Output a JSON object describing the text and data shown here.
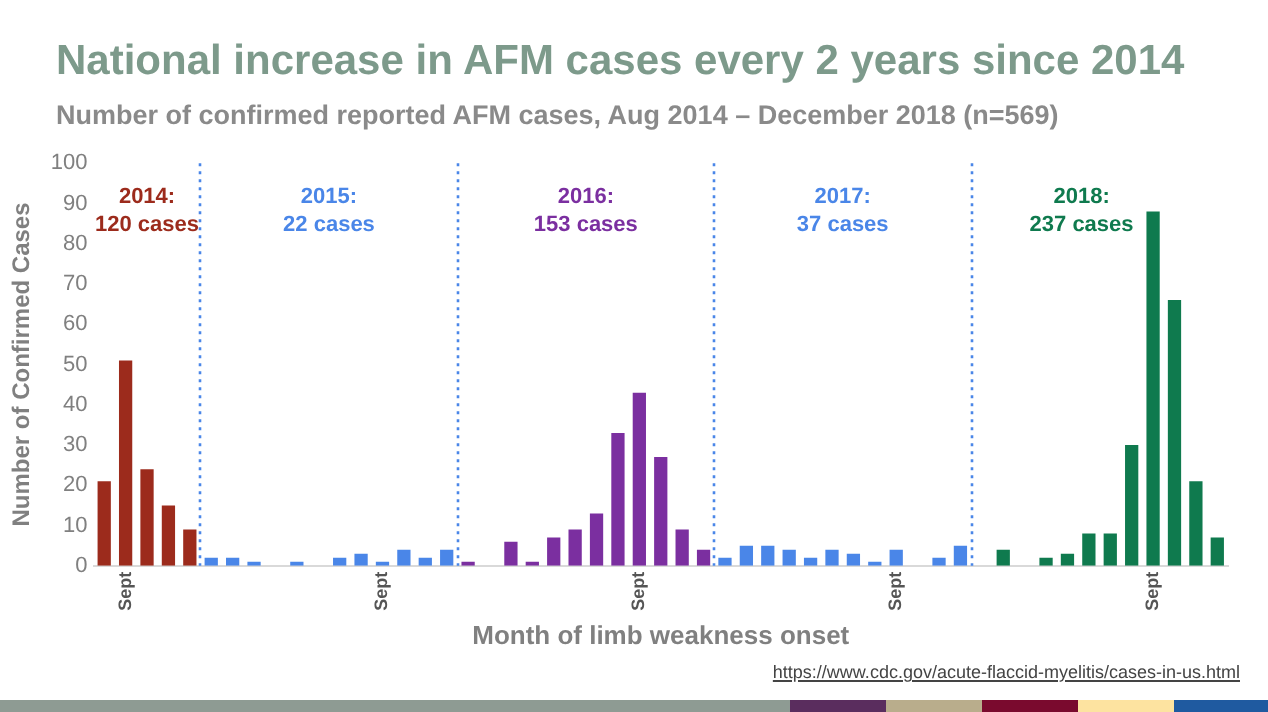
{
  "chart_data": {
    "type": "bar",
    "title": "National increase in AFM cases every 2 years since 2014",
    "subtitle": "Number of confirmed reported AFM cases, Aug 2014 – December 2018 (n=569)",
    "xlabel": "Month of limb weakness onset",
    "ylabel": "Number of Confirmed Cases",
    "series": [
      {
        "color": "#9c2b1c",
        "x": [
          "2014-08",
          "2014-09",
          "2014-10",
          "2014-11",
          "2014-12"
        ],
        "values": [
          21,
          51,
          24,
          15,
          9
        ]
      },
      {
        "color": "#4a86e8",
        "x": [
          "2015-01",
          "2015-02",
          "2015-03",
          "2015-04",
          "2015-05",
          "2015-06",
          "2015-07",
          "2015-08",
          "2015-09",
          "2015-10",
          "2015-11",
          "2015-12"
        ],
        "values": [
          2,
          2,
          1,
          0,
          1,
          0,
          2,
          3,
          1,
          4,
          2,
          4
        ]
      },
      {
        "color": "#7b2fa0",
        "x": [
          "2016-01",
          "2016-02",
          "2016-03",
          "2016-04",
          "2016-05",
          "2016-06",
          "2016-07",
          "2016-08",
          "2016-09",
          "2016-10",
          "2016-11",
          "2016-12"
        ],
        "values": [
          1,
          0,
          6,
          1,
          7,
          9,
          13,
          33,
          43,
          27,
          9,
          4
        ]
      },
      {
        "color": "#4a86e8",
        "x": [
          "2017-01",
          "2017-02",
          "2017-03",
          "2017-04",
          "2017-05",
          "2017-06",
          "2017-07",
          "2017-08",
          "2017-09",
          "2017-10",
          "2017-11",
          "2017-12"
        ],
        "values": [
          2,
          5,
          5,
          4,
          2,
          4,
          3,
          1,
          4,
          0,
          2,
          5
        ]
      },
      {
        "color": "#0f7a4e",
        "x": [
          "2018-01",
          "2018-02",
          "2018-03",
          "2018-04",
          "2018-05",
          "2018-06",
          "2018-07",
          "2018-08",
          "2018-09",
          "2018-10",
          "2018-11",
          "2018-12"
        ],
        "values": [
          0,
          4,
          0,
          2,
          3,
          8,
          8,
          30,
          88,
          66,
          21,
          7
        ]
      }
    ],
    "xlim": [
      "2014-08-01",
      "2019-01-01"
    ],
    "xticks": [
      {
        "value": "2014-09-16",
        "label": "Sept"
      },
      {
        "value": "2015-09-16",
        "label": "Sept"
      },
      {
        "value": "2016-09-16",
        "label": "Sept"
      },
      {
        "value": "2017-09-16",
        "label": "Sept"
      },
      {
        "value": "2018-09-16",
        "label": "Sept"
      }
    ],
    "ylim": [
      0,
      100
    ],
    "yticks": [
      0,
      10,
      20,
      30,
      40,
      50,
      60,
      70,
      80,
      90,
      100
    ],
    "ref_lines": [
      {
        "axis": "x",
        "value": "2015-01-01",
        "color": "#4a86e8",
        "line_style": "dotted"
      },
      {
        "axis": "x",
        "value": "2016-01-01",
        "color": "#4a86e8",
        "line_style": "dotted"
      },
      {
        "axis": "x",
        "value": "2017-01-01",
        "color": "#4a86e8",
        "line_style": "dotted"
      },
      {
        "axis": "x",
        "value": "2018-01-01",
        "color": "#4a86e8",
        "line_style": "dotted"
      }
    ],
    "annotations": [
      "2014:\n120 cases",
      "2015:\n22 cases",
      "2016:\n153 cases",
      "2017:\n37 cases",
      "2018:\n237 cases",
      "https://www.cdc.gov/acute-flaccid-myelitis/cases-in-us.html"
    ],
    "grid": false,
    "legend": false
  }
}
